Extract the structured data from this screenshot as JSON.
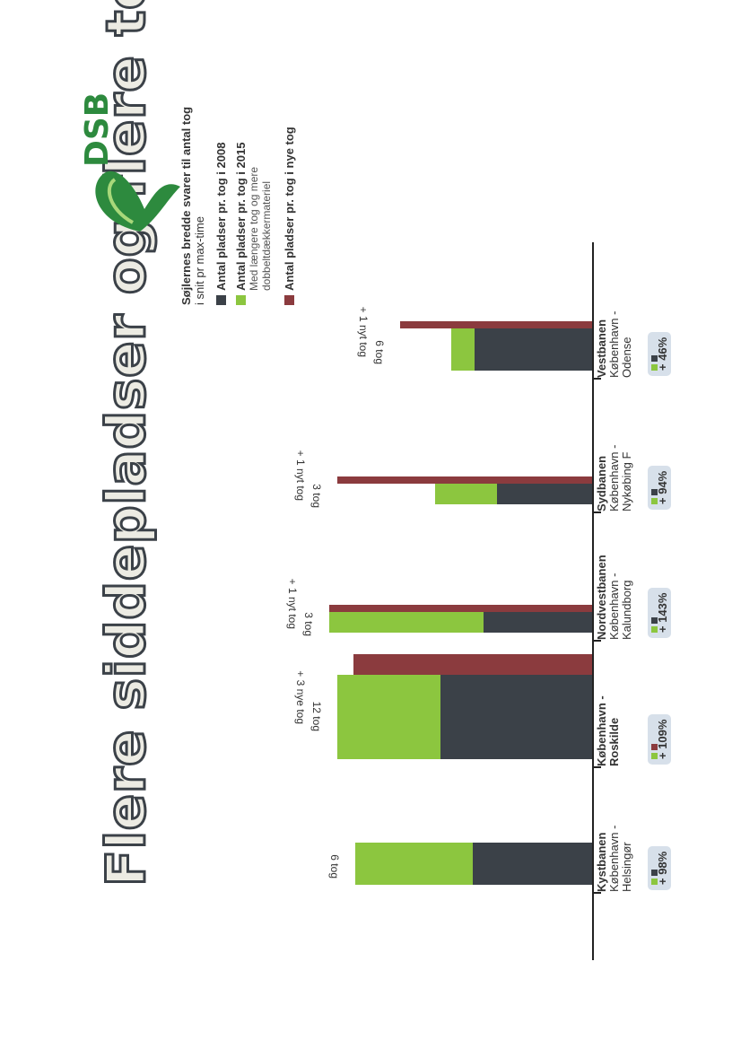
{
  "title": "Flere siddepladser og flere tog",
  "logo": {
    "text": "DSB"
  },
  "legend": {
    "title_bold": "Søjlernes bredde svarer til antal tog",
    "title_rest": "i snit pr max-time",
    "items": [
      {
        "label": "Antal pladser pr. tog i 2008",
        "sub1": "",
        "sub2": ""
      },
      {
        "label": "Antal pladser pr. tog i 2015",
        "sub1": "Med længere tog og mere",
        "sub2": "dobbeltdækkermateriel"
      },
      {
        "label": "Antal pladser pr. tog i nye tog",
        "sub1": "",
        "sub2": ""
      }
    ]
  },
  "colors": {
    "dark": "#3b4148",
    "green": "#8cc63f",
    "red": "#8b3b3e"
  },
  "chart_data": {
    "type": "bar",
    "series": [
      {
        "name": "Antal pladser pr. tog i 2008",
        "color": "#3b4148"
      },
      {
        "name": "Antal pladser pr. tog i 2015",
        "color": "#8cc63f"
      },
      {
        "name": "Antal pladser pr. tog i nye tog",
        "color": "#8b3b3e"
      }
    ],
    "groups": [
      {
        "line": "Kystbanen",
        "route1": "København -",
        "route2": "Helsingør",
        "change": "+ 98%",
        "label1": "6 tog",
        "label2": "",
        "trains_existing": 6,
        "trains_new": 0,
        "seats_2008": 370,
        "seats_2015": 733,
        "seats_new": null
      },
      {
        "line": "København -",
        "route1": "Roskilde",
        "route2": "",
        "change": "+ 109%",
        "label1": "12 tog",
        "label2": "+ 3 nye tog",
        "trains_existing": 12,
        "trains_new": 3,
        "seats_2008": 470,
        "seats_2015": 790,
        "seats_new": 740
      },
      {
        "line": "Nordvestbanen",
        "route1": "København -",
        "route2": "Kalundborg",
        "change": "+ 143%",
        "label1": "3 tog",
        "label2": "+ 1 nyt tog",
        "trains_existing": 3,
        "trains_new": 1,
        "seats_2008": 335,
        "seats_2015": 815,
        "seats_new": 815
      },
      {
        "line": "Sydbanen",
        "route1": "København -",
        "route2": "Nykøbing F",
        "change": "+ 94%",
        "label1": "3 tog",
        "label2": "+ 1 nyt tog",
        "trains_existing": 3,
        "trains_new": 1,
        "seats_2008": 295,
        "seats_2015": 485,
        "seats_new": 790
      },
      {
        "line": "Vestbanen",
        "route1": "København -",
        "route2": "Odense",
        "change": "+ 46%",
        "label1": "6 tog",
        "label2": "+ 1 nyt tog",
        "trains_existing": 6,
        "trains_new": 1,
        "seats_2008": 365,
        "seats_2015": 435,
        "seats_new": 595
      }
    ]
  }
}
